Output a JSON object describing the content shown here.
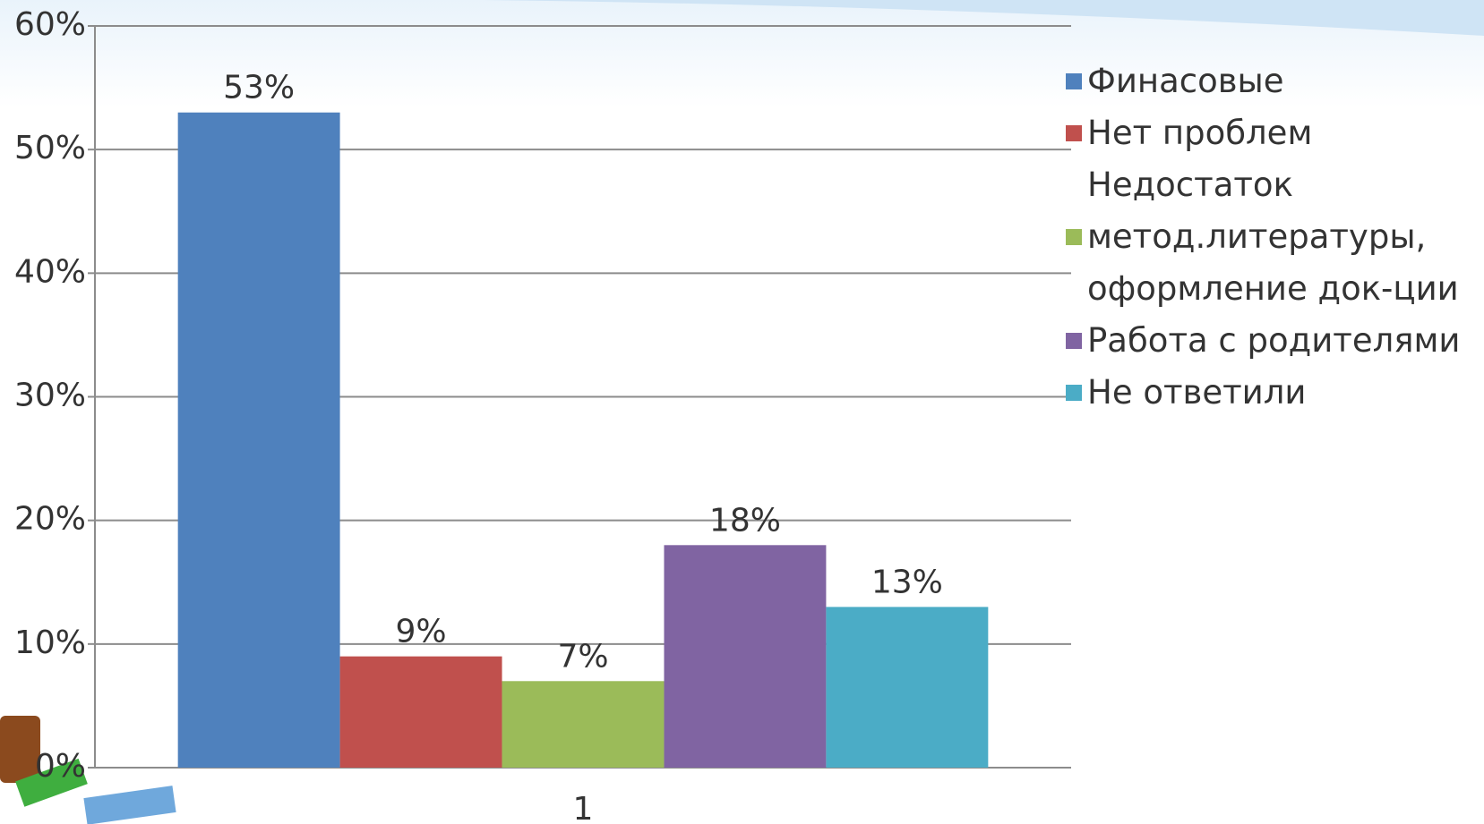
{
  "chart_data": {
    "type": "bar",
    "categories": [
      "1"
    ],
    "series": [
      {
        "name": "Финасовые",
        "color": "#4f81bd",
        "values": [
          53
        ],
        "value_labels": [
          "53%"
        ]
      },
      {
        "name": "Нет проблем",
        "color": "#c0504d",
        "values": [
          9
        ],
        "value_labels": [
          "9%"
        ]
      },
      {
        "name": "Недостаток метод.литературы, оформление док-ции",
        "color": "#9bbb59",
        "values": [
          7
        ],
        "value_labels": [
          "7%"
        ]
      },
      {
        "name": "Работа с родителями",
        "color": "#8064a2",
        "values": [
          18
        ],
        "value_labels": [
          "18%"
        ]
      },
      {
        "name": "Не ответили",
        "color": "#4bacc6",
        "values": [
          13
        ],
        "value_labels": [
          "13%"
        ]
      }
    ],
    "ylim": [
      0,
      60
    ],
    "yticks": [
      {
        "value": 0,
        "label": "0%"
      },
      {
        "value": 10,
        "label": "10%"
      },
      {
        "value": 20,
        "label": "20%"
      },
      {
        "value": 30,
        "label": "30%"
      },
      {
        "value": 40,
        "label": "40%"
      },
      {
        "value": 50,
        "label": "50%"
      },
      {
        "value": 60,
        "label": "60%"
      }
    ],
    "grid": true,
    "legend": "right"
  }
}
